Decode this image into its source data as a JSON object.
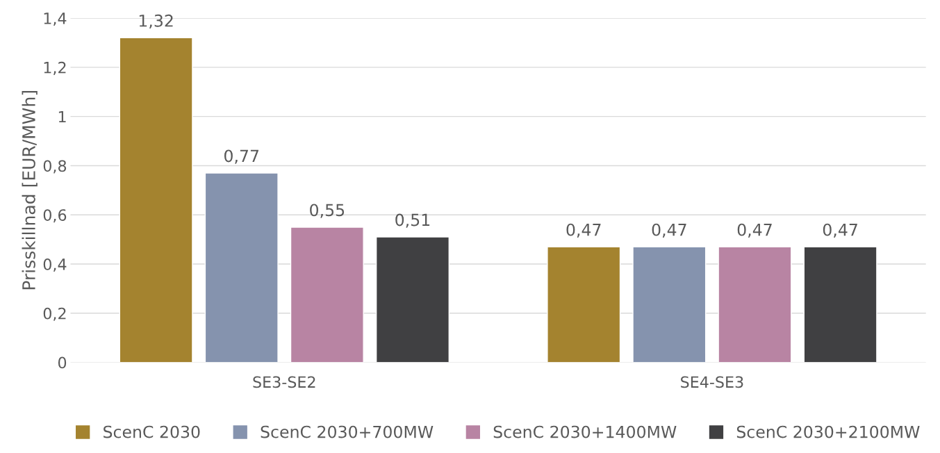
{
  "chart_data": {
    "type": "bar",
    "ylabel": "Prisskillnad [EUR/MWh]",
    "categories": [
      "SE3-SE2",
      "SE4-SE3"
    ],
    "series": [
      {
        "name": "ScenC 2030",
        "color": "#a4832f",
        "values": [
          1.32,
          0.47
        ],
        "value_labels": [
          "1,32",
          "0,47"
        ]
      },
      {
        "name": "ScenC 2030+700MW",
        "color": "#8593ae",
        "values": [
          0.77,
          0.47
        ],
        "value_labels": [
          "0,77",
          "0,47"
        ]
      },
      {
        "name": "ScenC 2030+1400MW",
        "color": "#b884a3",
        "values": [
          0.55,
          0.47
        ],
        "value_labels": [
          "0,55",
          "0,47"
        ]
      },
      {
        "name": "ScenC 2030+2100MW",
        "color": "#404042",
        "values": [
          0.51,
          0.47
        ],
        "value_labels": [
          "0,51",
          "0,47"
        ]
      }
    ],
    "ylim": [
      0,
      1.4
    ],
    "yticks": [
      0,
      {
        "value": 0.2,
        "label": "0,2"
      },
      {
        "value": 0.4,
        "label": "0,4"
      },
      {
        "value": 0.6,
        "label": "0,6"
      },
      {
        "value": 0.8,
        "label": "0,8"
      },
      1,
      {
        "value": 1.2,
        "label": "1,2"
      },
      {
        "value": 1.4,
        "label": "1,4"
      }
    ],
    "grid": "y",
    "legend": "bottom"
  }
}
